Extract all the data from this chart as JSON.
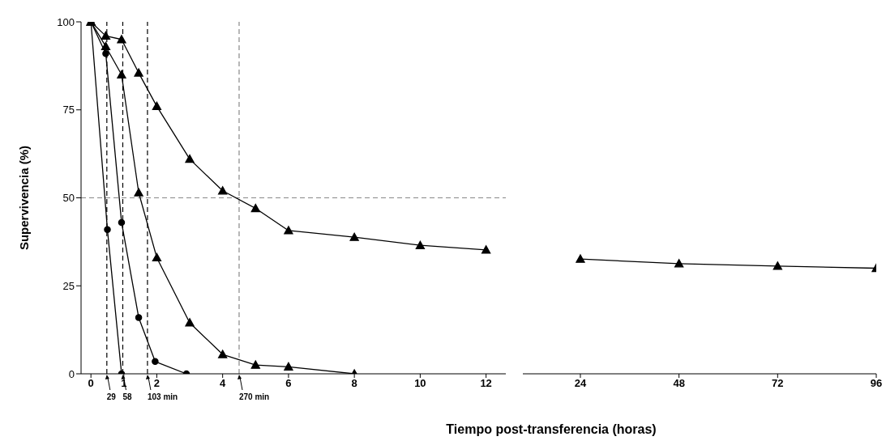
{
  "chart_data": [
    {
      "type": "line",
      "xlabel": "Tiempo post-transferencia (horas)",
      "ylabel": "Supervivencia (%)",
      "xlim": [
        -0.3,
        12.6
      ],
      "xticks": [
        0,
        1,
        2,
        4,
        6,
        8,
        10,
        12
      ],
      "ylim": [
        0,
        100
      ],
      "yticks": [
        0,
        25,
        50,
        75,
        100
      ],
      "grid": false,
      "legend": false,
      "line_style": "solid",
      "series": [
        {
          "color": "#000000",
          "marker": "circle",
          "x": [
            0,
            0.5,
            0.93
          ],
          "values": [
            100,
            41,
            0
          ]
        },
        {
          "color": "#000000",
          "marker": "circle",
          "x": [
            0,
            0.45,
            0.93,
            1.45,
            1.95,
            2.9
          ],
          "values": [
            100,
            91,
            43,
            16,
            3.5,
            0
          ]
        },
        {
          "color": "#000000",
          "marker": "triangle",
          "x": [
            0,
            0.45,
            0.93,
            1.45,
            2,
            3,
            4,
            5,
            6,
            8
          ],
          "values": [
            100,
            93,
            85,
            51.5,
            33,
            14.5,
            5.5,
            2.5,
            2,
            0
          ]
        },
        {
          "color": "#000000",
          "marker": "triangle",
          "x": [
            0,
            0.45,
            0.93,
            1.45,
            2,
            3,
            4,
            5,
            6,
            8,
            10,
            12
          ],
          "values": [
            100,
            96,
            95,
            85.5,
            76,
            61,
            52,
            47,
            40.7,
            38.8,
            36.5,
            35.2
          ]
        }
      ],
      "ref_lines": [
        {
          "axis": "y",
          "value": 50,
          "line_style": "dashed",
          "color": "#888888"
        },
        {
          "axis": "x",
          "value": 0.483,
          "line_style": "dashed",
          "color": "#000000"
        },
        {
          "axis": "x",
          "value": 0.967,
          "line_style": "dashed",
          "color": "#000000"
        },
        {
          "axis": "x",
          "value": 1.717,
          "line_style": "dashed",
          "color": "#000000"
        },
        {
          "axis": "x",
          "value": 4.5,
          "line_style": "dashed",
          "color": "#888888"
        }
      ],
      "annotations": [
        {
          "text": "29",
          "x": 0.483,
          "y": 0
        },
        {
          "text": "58",
          "x": 0.967,
          "y": 0
        },
        {
          "text": "103 min",
          "x": 1.717,
          "y": 0
        },
        {
          "text": "270 min",
          "x": 4.5,
          "y": 0
        }
      ]
    },
    {
      "type": "line",
      "xlim": [
        10,
        96
      ],
      "xticks": [
        24,
        48,
        72,
        96
      ],
      "ylim": [
        0,
        100
      ],
      "tick_labels": "x",
      "grid": false,
      "legend": false,
      "line_style": "solid",
      "series": [
        {
          "color": "#000000",
          "marker": "triangle",
          "x": [
            24,
            48,
            72,
            96
          ],
          "values": [
            32.6,
            31.3,
            30.6,
            30
          ]
        }
      ]
    }
  ]
}
